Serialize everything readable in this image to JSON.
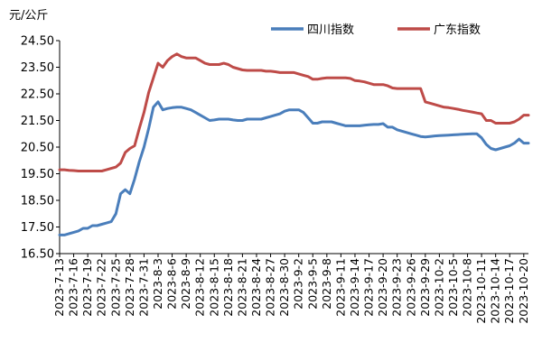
{
  "chart_data": {
    "type": "line",
    "y_unit": "元/公斤",
    "ylim": [
      16.5,
      24.5
    ],
    "yticks": [
      "16.50",
      "17.50",
      "18.50",
      "19.50",
      "20.50",
      "21.50",
      "22.50",
      "23.50",
      "24.50"
    ],
    "grid": false,
    "legend_position": "top-right",
    "x_tick_labels": [
      "2023-7-13",
      "2023-7-16",
      "2023-7-19",
      "2023-7-22",
      "2023-7-25",
      "2023-7-28",
      "2023-7-31",
      "2023-8-3",
      "2023-8-6",
      "2023-8-9",
      "2023-8-12",
      "2023-8-15",
      "2023-8-18",
      "2023-8-21",
      "2023-8-24",
      "2023-8-27",
      "2023-8-30",
      "2023-9-2",
      "2023-9-5",
      "2023-9-8",
      "2023-9-11",
      "2023-9-14",
      "2023-9-17",
      "2023-9-20",
      "2023-9-23",
      "2023-9-26",
      "2023-9-29",
      "2023-10-2",
      "2023-10-5",
      "2023-10-8",
      "2023-10-11",
      "2023-10-14",
      "2023-10-17",
      "2023-10-20"
    ],
    "x": [
      "2023-7-13",
      "2023-7-14",
      "2023-7-15",
      "2023-7-16",
      "2023-7-17",
      "2023-7-18",
      "2023-7-19",
      "2023-7-20",
      "2023-7-21",
      "2023-7-22",
      "2023-7-23",
      "2023-7-24",
      "2023-7-25",
      "2023-7-26",
      "2023-7-27",
      "2023-7-28",
      "2023-7-29",
      "2023-7-30",
      "2023-7-31",
      "2023-8-1",
      "2023-8-2",
      "2023-8-3",
      "2023-8-4",
      "2023-8-5",
      "2023-8-6",
      "2023-8-7",
      "2023-8-8",
      "2023-8-9",
      "2023-8-10",
      "2023-8-11",
      "2023-8-12",
      "2023-8-13",
      "2023-8-14",
      "2023-8-15",
      "2023-8-16",
      "2023-8-17",
      "2023-8-18",
      "2023-8-19",
      "2023-8-20",
      "2023-8-21",
      "2023-8-22",
      "2023-8-23",
      "2023-8-24",
      "2023-8-25",
      "2023-8-26",
      "2023-8-27",
      "2023-8-28",
      "2023-8-29",
      "2023-8-30",
      "2023-8-31",
      "2023-9-1",
      "2023-9-2",
      "2023-9-3",
      "2023-9-4",
      "2023-9-5",
      "2023-9-6",
      "2023-9-7",
      "2023-9-8",
      "2023-9-9",
      "2023-9-10",
      "2023-9-11",
      "2023-9-12",
      "2023-9-13",
      "2023-9-14",
      "2023-9-15",
      "2023-9-16",
      "2023-9-17",
      "2023-9-18",
      "2023-9-19",
      "2023-9-20",
      "2023-9-21",
      "2023-9-22",
      "2023-9-23",
      "2023-9-24",
      "2023-9-25",
      "2023-9-26",
      "2023-9-27",
      "2023-9-28",
      "2023-9-29",
      "2023-9-30",
      "2023-10-1",
      "2023-10-2",
      "2023-10-3",
      "2023-10-4",
      "2023-10-5",
      "2023-10-6",
      "2023-10-7",
      "2023-10-8",
      "2023-10-9",
      "2023-10-10",
      "2023-10-11",
      "2023-10-12",
      "2023-10-13",
      "2023-10-14",
      "2023-10-15",
      "2023-10-16",
      "2023-10-17",
      "2023-10-18",
      "2023-10-19",
      "2023-10-20",
      "2023-10-21"
    ],
    "series": [
      {
        "name": "四川指数",
        "color": "#4a7ebb",
        "values": [
          17.2,
          17.2,
          17.25,
          17.3,
          17.35,
          17.45,
          17.45,
          17.55,
          17.55,
          17.6,
          17.65,
          17.7,
          18.0,
          18.75,
          18.9,
          18.75,
          19.3,
          19.95,
          20.5,
          21.2,
          22.0,
          22.2,
          21.9,
          21.95,
          21.98,
          22.0,
          22.0,
          21.95,
          21.9,
          21.8,
          21.7,
          21.6,
          21.5,
          21.52,
          21.55,
          21.55,
          21.55,
          21.52,
          21.5,
          21.5,
          21.55,
          21.55,
          21.55,
          21.55,
          21.6,
          21.65,
          21.7,
          21.75,
          21.85,
          21.9,
          21.9,
          21.9,
          21.8,
          21.6,
          21.4,
          21.4,
          21.45,
          21.45,
          21.45,
          21.4,
          21.35,
          21.3,
          21.3,
          21.3,
          21.3,
          21.32,
          21.34,
          21.35,
          21.35,
          21.38,
          21.25,
          21.25,
          21.15,
          21.1,
          21.05,
          21.0,
          20.95,
          20.9,
          20.88,
          20.9,
          20.92,
          20.93,
          20.94,
          20.95,
          20.96,
          20.97,
          20.98,
          20.99,
          21.0,
          21.0,
          20.85,
          20.6,
          20.45,
          20.4,
          20.45,
          20.5,
          20.55,
          20.65,
          20.8,
          20.65,
          20.65
        ]
      },
      {
        "name": "广东指数",
        "color": "#be4b48",
        "values": [
          19.65,
          19.65,
          19.63,
          19.62,
          19.6,
          19.6,
          19.6,
          19.6,
          19.6,
          19.6,
          19.65,
          19.7,
          19.75,
          19.9,
          20.3,
          20.45,
          20.55,
          21.2,
          21.8,
          22.55,
          23.1,
          23.65,
          23.5,
          23.75,
          23.9,
          24.0,
          23.9,
          23.85,
          23.85,
          23.85,
          23.75,
          23.65,
          23.6,
          23.6,
          23.6,
          23.65,
          23.6,
          23.5,
          23.45,
          23.4,
          23.38,
          23.38,
          23.38,
          23.38,
          23.35,
          23.35,
          23.33,
          23.3,
          23.3,
          23.3,
          23.3,
          23.25,
          23.2,
          23.15,
          23.05,
          23.05,
          23.08,
          23.1,
          23.1,
          23.1,
          23.1,
          23.1,
          23.08,
          23.0,
          22.98,
          22.95,
          22.9,
          22.85,
          22.85,
          22.85,
          22.8,
          22.72,
          22.7,
          22.7,
          22.7,
          22.7,
          22.7,
          22.7,
          22.2,
          22.15,
          22.1,
          22.05,
          22.0,
          21.98,
          21.95,
          21.92,
          21.88,
          21.85,
          21.82,
          21.78,
          21.75,
          21.5,
          21.5,
          21.4,
          21.4,
          21.4,
          21.4,
          21.45,
          21.55,
          21.7,
          21.7
        ]
      }
    ]
  }
}
